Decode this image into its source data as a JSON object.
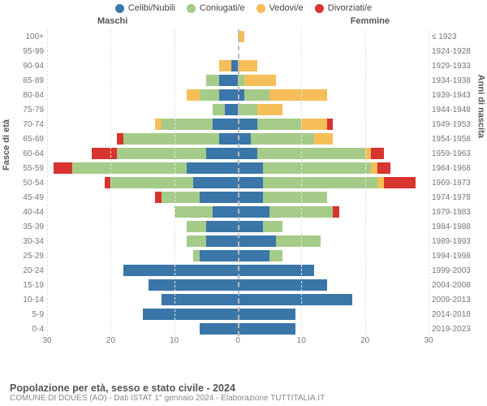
{
  "legend": [
    {
      "label": "Celibi/Nubili",
      "color": "#3a76a8"
    },
    {
      "label": "Coniugati/e",
      "color": "#a5cb89"
    },
    {
      "label": "Vedovi/e",
      "color": "#f6be58"
    },
    {
      "label": "Divorziati/e",
      "color": "#d7342f"
    }
  ],
  "header_male": "Maschi",
  "header_female": "Femmine",
  "axis_left_title": "Fasce di età",
  "axis_right_title": "Anni di nascita",
  "title": "Popolazione per età, sesso e stato civile - 2024",
  "subtitle": "COMUNE DI DOUES (AO) - Dati ISTAT 1° gennaio 2024 - Elaborazione TUTTITALIA.IT",
  "x_max": 30,
  "x_ticks": [
    30,
    20,
    10,
    0,
    10,
    20,
    30
  ],
  "colors": {
    "celibi": "#3a76a8",
    "coniugati": "#a5cb89",
    "vedovi": "#f6be58",
    "divorziati": "#d7342f",
    "bg": "#ffffff"
  },
  "rows": [
    {
      "age": "100+",
      "birth": "≤ 1923",
      "m": {
        "c": 0,
        "co": 0,
        "v": 0,
        "d": 0
      },
      "f": {
        "c": 0,
        "co": 0,
        "v": 1,
        "d": 0
      }
    },
    {
      "age": "95-99",
      "birth": "1924-1928",
      "m": {
        "c": 0,
        "co": 0,
        "v": 0,
        "d": 0
      },
      "f": {
        "c": 0,
        "co": 0,
        "v": 0,
        "d": 0
      }
    },
    {
      "age": "90-94",
      "birth": "1929-1933",
      "m": {
        "c": 1,
        "co": 0,
        "v": 2,
        "d": 0
      },
      "f": {
        "c": 0,
        "co": 0,
        "v": 3,
        "d": 0
      }
    },
    {
      "age": "85-89",
      "birth": "1934-1938",
      "m": {
        "c": 3,
        "co": 2,
        "v": 0,
        "d": 0
      },
      "f": {
        "c": 0,
        "co": 1,
        "v": 5,
        "d": 0
      }
    },
    {
      "age": "80-84",
      "birth": "1939-1943",
      "m": {
        "c": 3,
        "co": 3,
        "v": 2,
        "d": 0
      },
      "f": {
        "c": 1,
        "co": 4,
        "v": 9,
        "d": 0
      }
    },
    {
      "age": "75-79",
      "birth": "1944-1948",
      "m": {
        "c": 2,
        "co": 2,
        "v": 0,
        "d": 0
      },
      "f": {
        "c": 0,
        "co": 3,
        "v": 4,
        "d": 0
      }
    },
    {
      "age": "70-74",
      "birth": "1949-1953",
      "m": {
        "c": 4,
        "co": 8,
        "v": 1,
        "d": 0
      },
      "f": {
        "c": 3,
        "co": 7,
        "v": 4,
        "d": 1
      }
    },
    {
      "age": "65-69",
      "birth": "1954-1958",
      "m": {
        "c": 3,
        "co": 15,
        "v": 0,
        "d": 1
      },
      "f": {
        "c": 2,
        "co": 10,
        "v": 3,
        "d": 0
      }
    },
    {
      "age": "60-64",
      "birth": "1959-1963",
      "m": {
        "c": 5,
        "co": 14,
        "v": 0,
        "d": 4
      },
      "f": {
        "c": 3,
        "co": 17,
        "v": 1,
        "d": 2
      }
    },
    {
      "age": "55-59",
      "birth": "1964-1968",
      "m": {
        "c": 8,
        "co": 18,
        "v": 0,
        "d": 3
      },
      "f": {
        "c": 4,
        "co": 17,
        "v": 1,
        "d": 2
      }
    },
    {
      "age": "50-54",
      "birth": "1969-1973",
      "m": {
        "c": 7,
        "co": 13,
        "v": 0,
        "d": 1
      },
      "f": {
        "c": 4,
        "co": 18,
        "v": 1,
        "d": 5
      }
    },
    {
      "age": "45-49",
      "birth": "1974-1978",
      "m": {
        "c": 6,
        "co": 6,
        "v": 0,
        "d": 1
      },
      "f": {
        "c": 4,
        "co": 10,
        "v": 0,
        "d": 0
      }
    },
    {
      "age": "40-44",
      "birth": "1979-1983",
      "m": {
        "c": 4,
        "co": 6,
        "v": 0,
        "d": 0
      },
      "f": {
        "c": 5,
        "co": 10,
        "v": 0,
        "d": 1
      }
    },
    {
      "age": "35-39",
      "birth": "1984-1988",
      "m": {
        "c": 5,
        "co": 3,
        "v": 0,
        "d": 0
      },
      "f": {
        "c": 4,
        "co": 3,
        "v": 0,
        "d": 0
      }
    },
    {
      "age": "30-34",
      "birth": "1989-1993",
      "m": {
        "c": 5,
        "co": 3,
        "v": 0,
        "d": 0
      },
      "f": {
        "c": 6,
        "co": 7,
        "v": 0,
        "d": 0
      }
    },
    {
      "age": "25-29",
      "birth": "1994-1998",
      "m": {
        "c": 6,
        "co": 1,
        "v": 0,
        "d": 0
      },
      "f": {
        "c": 5,
        "co": 2,
        "v": 0,
        "d": 0
      }
    },
    {
      "age": "20-24",
      "birth": "1999-2003",
      "m": {
        "c": 18,
        "co": 0,
        "v": 0,
        "d": 0
      },
      "f": {
        "c": 12,
        "co": 0,
        "v": 0,
        "d": 0
      }
    },
    {
      "age": "15-19",
      "birth": "2004-2008",
      "m": {
        "c": 14,
        "co": 0,
        "v": 0,
        "d": 0
      },
      "f": {
        "c": 14,
        "co": 0,
        "v": 0,
        "d": 0
      }
    },
    {
      "age": "10-14",
      "birth": "2009-2013",
      "m": {
        "c": 12,
        "co": 0,
        "v": 0,
        "d": 0
      },
      "f": {
        "c": 18,
        "co": 0,
        "v": 0,
        "d": 0
      }
    },
    {
      "age": "5-9",
      "birth": "2014-2018",
      "m": {
        "c": 15,
        "co": 0,
        "v": 0,
        "d": 0
      },
      "f": {
        "c": 9,
        "co": 0,
        "v": 0,
        "d": 0
      }
    },
    {
      "age": "0-4",
      "birth": "2019-2023",
      "m": {
        "c": 6,
        "co": 0,
        "v": 0,
        "d": 0
      },
      "f": {
        "c": 9,
        "co": 0,
        "v": 0,
        "d": 0
      }
    }
  ]
}
